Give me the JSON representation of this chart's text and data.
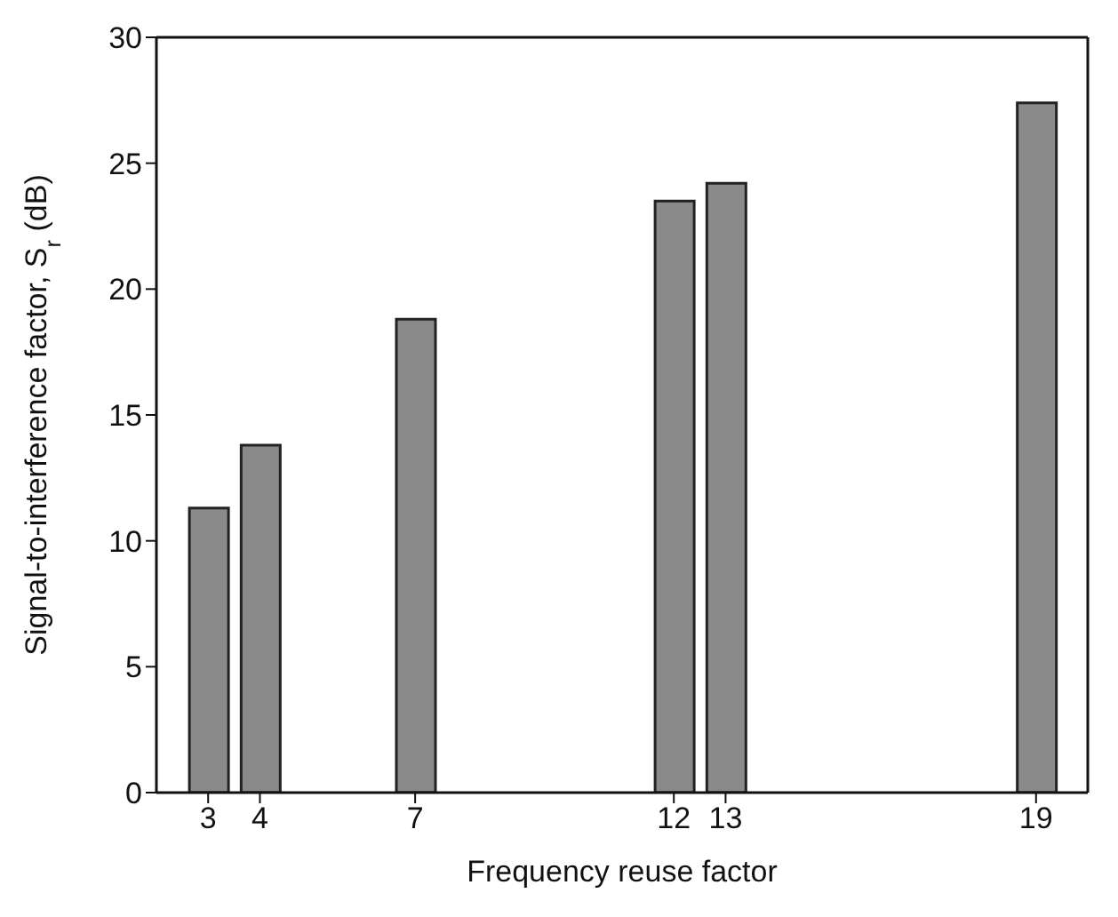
{
  "chart_data": {
    "type": "bar",
    "xlabel": "Frequency reuse factor",
    "ylabel": "Signal-to-interference factor, S$_{r}$ (dB)",
    "x": [
      3,
      4,
      7,
      12,
      13,
      19
    ],
    "values": [
      11.3,
      13.8,
      18.8,
      23.5,
      24.2,
      27.4
    ],
    "color": "#8a8a8a",
    "xlim": [
      2,
      20
    ],
    "xticks": [
      3,
      4,
      7,
      12,
      13,
      19
    ],
    "ylim": [
      0,
      30
    ],
    "yticks": [
      0,
      5,
      10,
      15,
      20,
      25,
      30
    ],
    "grid": false,
    "legend": false
  }
}
